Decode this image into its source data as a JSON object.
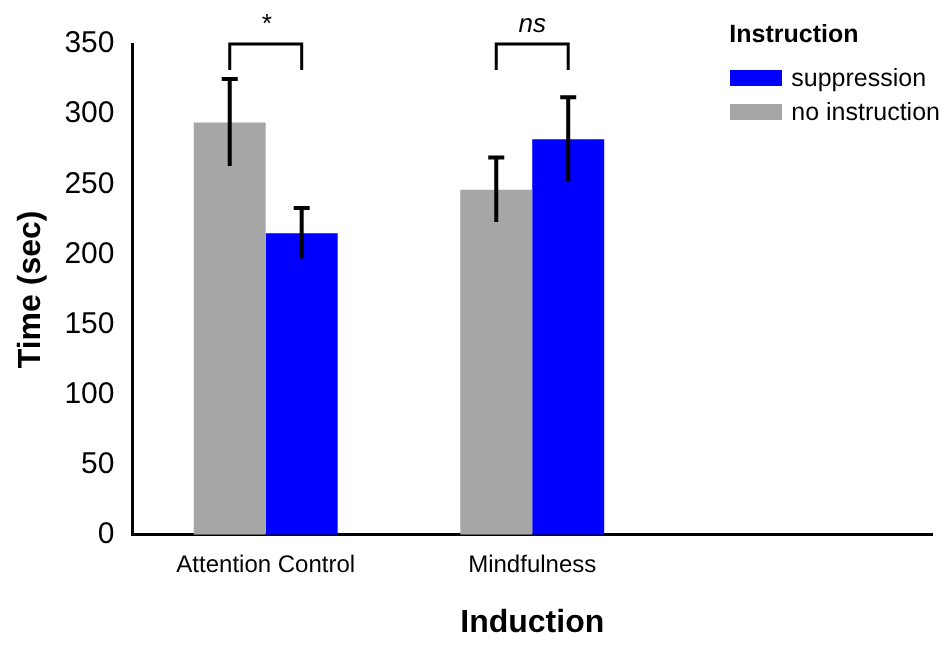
{
  "chart_data": {
    "type": "bar",
    "categories": [
      "Attention Control",
      "Mindfulness",
      null
    ],
    "series": [
      {
        "name": "no instruction",
        "color": "#a6a6a6",
        "values": [
          294,
          246,
          null
        ],
        "errors": [
          31,
          23,
          null
        ]
      },
      {
        "name": "suppression",
        "color": "#0000ff",
        "values": [
          215,
          282,
          null
        ],
        "errors": [
          18,
          30,
          null
        ]
      }
    ],
    "xlabel": "Induction",
    "ylabel": "Time (sec)",
    "legend_title": "Instruction",
    "ylim": [
      0,
      350
    ],
    "yticks": [
      0,
      50,
      100,
      150,
      200,
      250,
      300,
      350
    ],
    "annotations": [
      "*",
      "ns"
    ],
    "grid": false,
    "legend": "top right"
  }
}
